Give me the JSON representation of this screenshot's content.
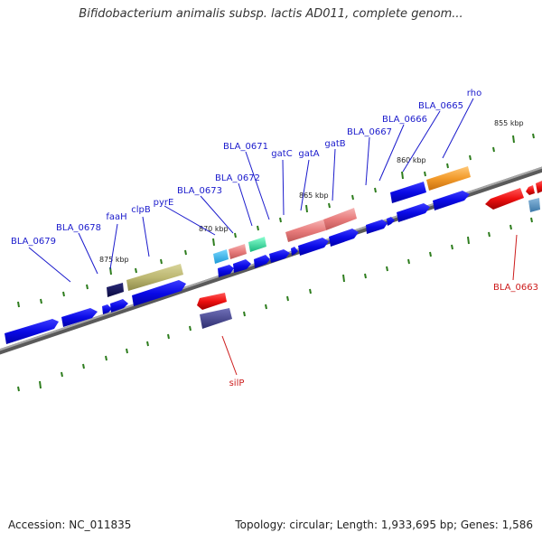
{
  "title": "Bifidobacterium animalis subsp. lactis AD011, complete genom...",
  "footer": {
    "accession": "Accession: NC_011835",
    "stats": "Topology: circular; Length: 1,933,695 bp; Genes: 1,586"
  },
  "colors": {
    "backbone": "#7f7f7f",
    "forward_label": "#1a1acc",
    "reverse_label": "#cc1a1a",
    "tick": "#2e7d1e"
  },
  "ticks": [
    {
      "label": "855 kbp"
    },
    {
      "label": "860 kbp"
    },
    {
      "label": "865 kbp"
    },
    {
      "label": "870 kbp"
    },
    {
      "label": "875 kbp"
    }
  ],
  "genes_top": [
    {
      "label": "BLA_0679"
    },
    {
      "label": "BLA_0678"
    },
    {
      "label": "faaH"
    },
    {
      "label": "clpB"
    },
    {
      "label": "pyrE"
    },
    {
      "label": "BLA_0673"
    },
    {
      "label": "BLA_0672"
    },
    {
      "label": "BLA_0671"
    },
    {
      "label": "gatC"
    },
    {
      "label": "gatA"
    },
    {
      "label": "gatB"
    },
    {
      "label": "BLA_0667"
    },
    {
      "label": "BLA_0666"
    },
    {
      "label": "BLA_0665"
    },
    {
      "label": "rho"
    }
  ],
  "genes_bottom": [
    {
      "label": "silP"
    },
    {
      "label": "BLA_0663"
    }
  ]
}
